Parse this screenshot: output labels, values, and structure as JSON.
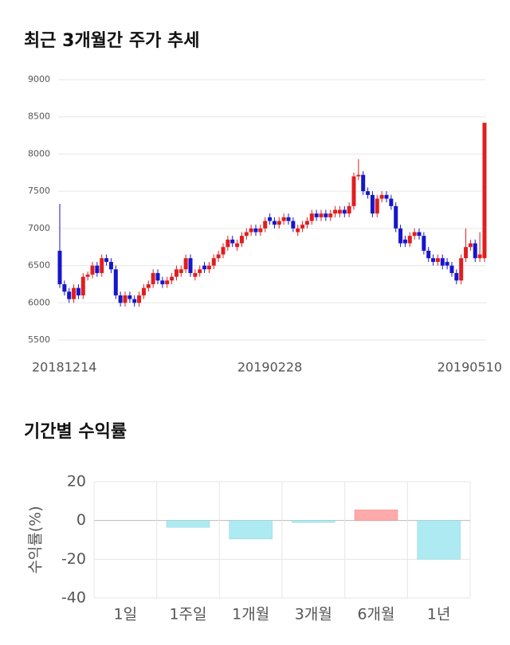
{
  "chart_data": [
    {
      "type": "candlestick",
      "title": "최근 3개월간 주가 추세",
      "categories": [
        "20181214",
        null,
        null,
        null,
        null,
        null,
        null,
        null,
        null,
        null,
        null,
        null,
        null,
        null,
        null,
        null,
        null,
        null,
        null,
        null,
        null,
        null,
        null,
        null,
        null,
        null,
        null,
        null,
        null,
        null,
        null,
        null,
        null,
        null,
        null,
        null,
        null,
        null,
        null,
        null,
        null,
        null,
        null,
        null,
        null,
        "20190228",
        null,
        null,
        null,
        null,
        null,
        null,
        null,
        null,
        null,
        null,
        null,
        null,
        null,
        null,
        null,
        null,
        null,
        null,
        null,
        null,
        null,
        null,
        null,
        null,
        null,
        null,
        null,
        null,
        null,
        null,
        null,
        null,
        null,
        null,
        null,
        null,
        null,
        null,
        null,
        null,
        null,
        null,
        null,
        null,
        null,
        "20190510"
      ],
      "open": [
        6700,
        6250,
        6150,
        6050,
        6200,
        6100,
        6350,
        6380,
        6500,
        6400,
        6600,
        6550,
        6450,
        6100,
        6000,
        6100,
        6050,
        6000,
        6100,
        6200,
        6250,
        6400,
        6300,
        6250,
        6300,
        6350,
        6400,
        6450,
        6600,
        6350,
        6400,
        6500,
        6450,
        6500,
        6600,
        6650,
        6750,
        6850,
        6750,
        6800,
        6900,
        6950,
        7000,
        6950,
        7000,
        7150,
        7100,
        7050,
        7100,
        7150,
        7100,
        6950,
        7000,
        7050,
        7100,
        7200,
        7150,
        7200,
        7150,
        7200,
        7200,
        7250,
        7200,
        7300,
        7700,
        7720,
        7500,
        7450,
        7200,
        7400,
        7450,
        7400,
        7300,
        7000,
        6850,
        6800,
        6900,
        6950,
        6900,
        6700,
        6600,
        6550,
        6600,
        6550,
        6500,
        6400,
        6300,
        6600,
        6750,
        6800,
        6600,
        6600
      ],
      "high": [
        7330,
        6300,
        6200,
        6250,
        6250,
        6400,
        6420,
        6550,
        6550,
        6650,
        6650,
        6600,
        6500,
        6150,
        6150,
        6150,
        6100,
        6150,
        6250,
        6300,
        6450,
        6450,
        6350,
        6350,
        6400,
        6500,
        6500,
        6650,
        6650,
        6450,
        6500,
        6550,
        6550,
        6650,
        6700,
        6800,
        6900,
        6900,
        6850,
        6950,
        7000,
        7050,
        7050,
        7050,
        7150,
        7200,
        7150,
        7150,
        7200,
        7200,
        7150,
        7050,
        7100,
        7150,
        7250,
        7250,
        7250,
        7250,
        7250,
        7300,
        7300,
        7300,
        7350,
        7750,
        7930,
        7770,
        7550,
        7500,
        7450,
        7500,
        7500,
        7450,
        7350,
        7050,
        6900,
        6950,
        7000,
        7000,
        6950,
        6750,
        6650,
        6650,
        6650,
        6600,
        6550,
        6450,
        6650,
        7000,
        6850,
        6850,
        6950,
        8420
      ],
      "low": [
        6200,
        6100,
        6000,
        6000,
        6050,
        6050,
        6300,
        6330,
        6350,
        6350,
        6500,
        6400,
        6050,
        5950,
        5950,
        6000,
        5950,
        5950,
        6050,
        6150,
        6200,
        6250,
        6200,
        6200,
        6250,
        6300,
        6350,
        6400,
        6350,
        6300,
        6350,
        6400,
        6400,
        6450,
        6550,
        6600,
        6700,
        6750,
        6700,
        6750,
        6850,
        6900,
        6900,
        6900,
        6950,
        7050,
        7000,
        7000,
        7050,
        7050,
        6950,
        6900,
        6950,
        7000,
        7050,
        7100,
        7100,
        7100,
        7100,
        7150,
        7150,
        7150,
        7150,
        7250,
        7650,
        7450,
        7400,
        7150,
        7150,
        7350,
        7350,
        7250,
        6950,
        6750,
        6750,
        6750,
        6850,
        6850,
        6650,
        6550,
        6500,
        6500,
        6450,
        6450,
        6350,
        6250,
        6250,
        6550,
        6700,
        6550,
        6550,
        6550
      ],
      "close": [
        6250,
        6150,
        6050,
        6200,
        6100,
        6350,
        6380,
        6500,
        6400,
        6600,
        6550,
        6450,
        6100,
        6000,
        6100,
        6050,
        6000,
        6100,
        6200,
        6250,
        6400,
        6300,
        6250,
        6300,
        6350,
        6450,
        6450,
        6600,
        6400,
        6400,
        6450,
        6450,
        6500,
        6600,
        6650,
        6750,
        6850,
        6800,
        6800,
        6900,
        6950,
        7000,
        6950,
        7000,
        7100,
        7100,
        7050,
        7100,
        7150,
        7100,
        7000,
        7000,
        7050,
        7100,
        7200,
        7150,
        7200,
        7150,
        7200,
        7250,
        7250,
        7200,
        7300,
        7700,
        7720,
        7500,
        7450,
        7200,
        7400,
        7450,
        7400,
        7300,
        7000,
        6800,
        6800,
        6900,
        6950,
        6900,
        6700,
        6600,
        6550,
        6600,
        6500,
        6500,
        6400,
        6300,
        6600,
        6750,
        6800,
        6600,
        6650,
        8420
      ],
      "up_color": "#e01e1e",
      "down_color": "#1616cc",
      "ylim": [
        5500,
        9000
      ],
      "yticks": [
        5500,
        6000,
        6500,
        7000,
        7500,
        8000,
        8500,
        9000
      ],
      "grid": true
    },
    {
      "type": "bar",
      "title": "기간별 수익률",
      "ylabel": "수익률(%)",
      "categories": [
        "1일",
        "1주일",
        "1개월",
        "3개월",
        "6개월",
        "1년"
      ],
      "values": [
        0,
        -3.5,
        -9.5,
        -1,
        5.5,
        -20
      ],
      "positive_color": "#ffaaaa",
      "negative_color": "#aeeaf2",
      "ylim": [
        -40,
        20
      ],
      "yticks": [
        20,
        0,
        -20,
        -40
      ],
      "grid": true
    }
  ]
}
